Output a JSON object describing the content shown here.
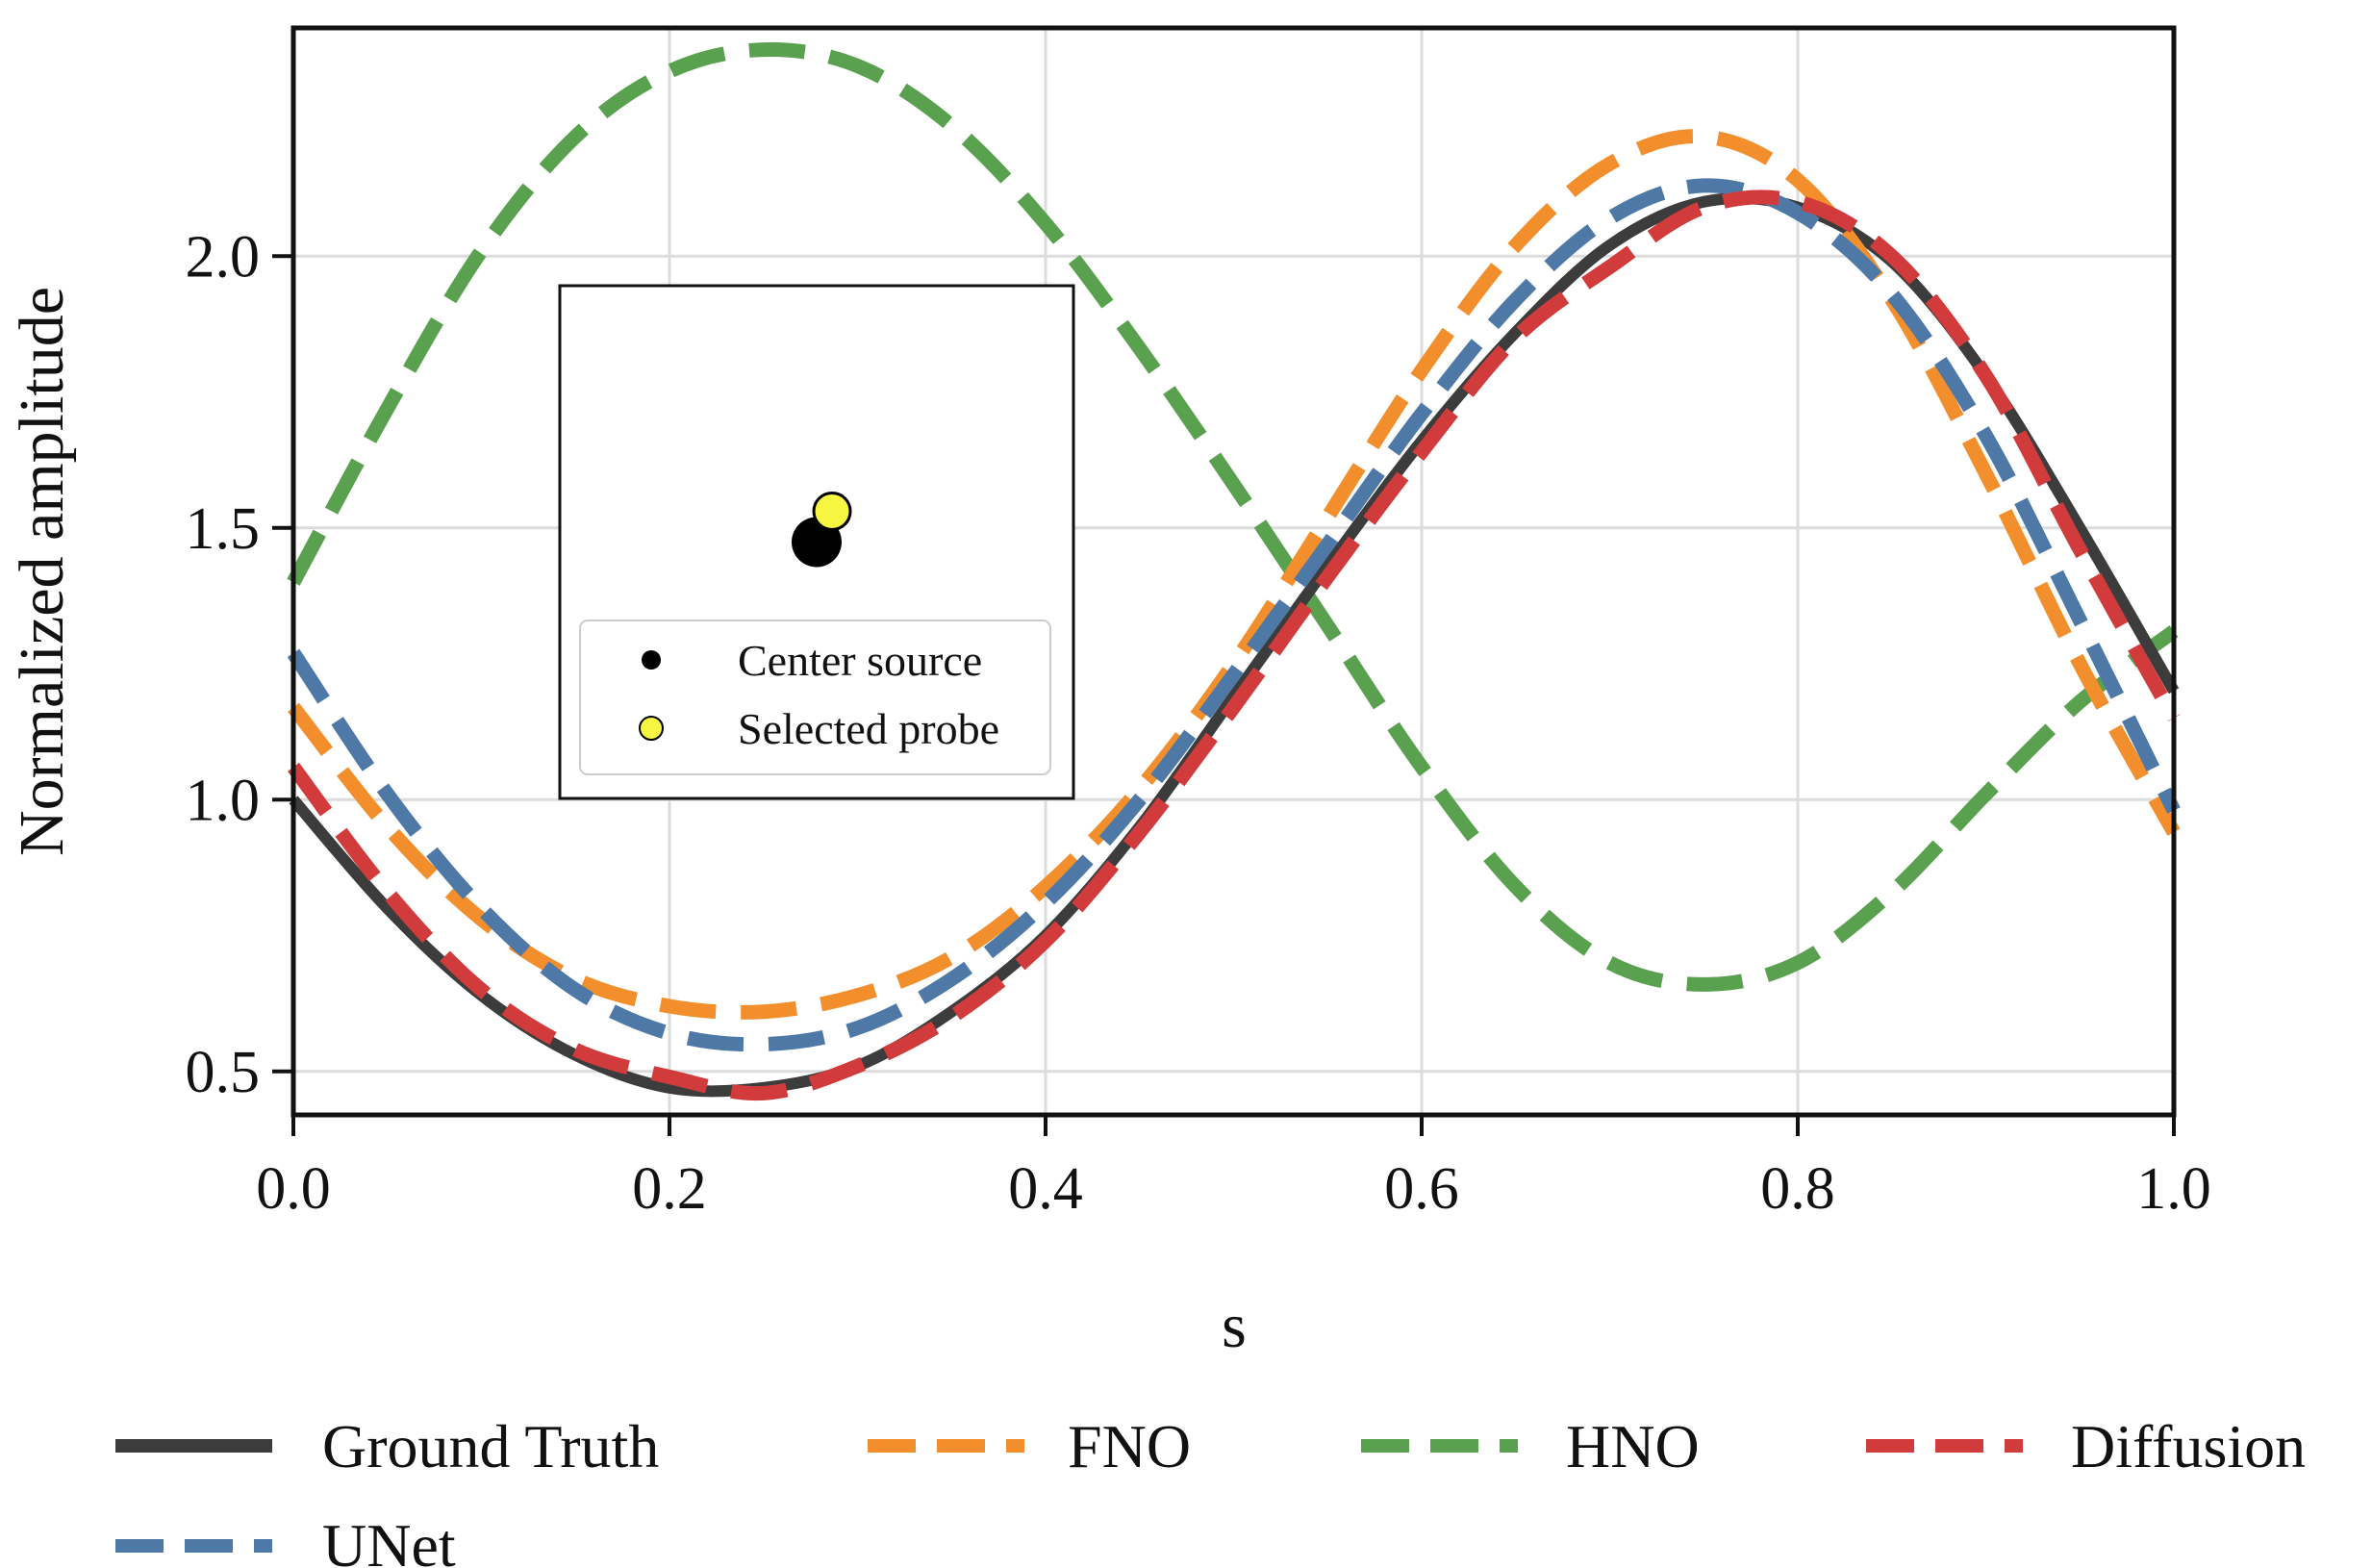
{
  "chart_data": {
    "type": "line",
    "xlabel": "s",
    "ylabel": "Normalized amplitude",
    "xlim": [
      0.0,
      1.0
    ],
    "ylim": [
      0.42,
      2.42
    ],
    "grid": true,
    "xticks": [
      0.0,
      0.2,
      0.4,
      0.6,
      0.8,
      1.0
    ],
    "xtick_labels": [
      "0.0",
      "0.2",
      "0.4",
      "0.6",
      "0.8",
      "1.0"
    ],
    "yticks": [
      0.5,
      1.0,
      1.5,
      2.0
    ],
    "ytick_labels": [
      "0.5",
      "1.0",
      "1.5",
      "2.0"
    ],
    "legend_position": "bottom",
    "series": [
      {
        "name": "Ground Truth",
        "style": "solid",
        "color": "#3c3c3c",
        "x": [
          0.0,
          0.05,
          0.1,
          0.15,
          0.2,
          0.25,
          0.3,
          0.35,
          0.4,
          0.45,
          0.5,
          0.55,
          0.6,
          0.65,
          0.7,
          0.75,
          0.8,
          0.85,
          0.9,
          0.95,
          1.0
        ],
        "y": [
          1.0,
          0.8,
          0.64,
          0.53,
          0.47,
          0.47,
          0.51,
          0.61,
          0.75,
          0.95,
          1.19,
          1.43,
          1.66,
          1.86,
          2.02,
          2.1,
          2.09,
          1.99,
          1.78,
          1.5,
          1.2
        ]
      },
      {
        "name": "FNO",
        "style": "dashed",
        "color": "#f28e2b",
        "x": [
          0.0,
          0.05,
          0.1,
          0.15,
          0.2,
          0.25,
          0.3,
          0.35,
          0.4,
          0.45,
          0.5,
          0.55,
          0.6,
          0.65,
          0.7,
          0.75,
          0.8,
          0.85,
          0.9,
          0.95,
          1.0
        ],
        "y": [
          1.17,
          0.95,
          0.78,
          0.67,
          0.62,
          0.61,
          0.64,
          0.71,
          0.84,
          1.02,
          1.25,
          1.52,
          1.79,
          2.02,
          2.17,
          2.22,
          2.14,
          1.92,
          1.6,
          1.25,
          0.94
        ]
      },
      {
        "name": "HNO",
        "style": "dashed",
        "color": "#59a14f",
        "x": [
          0.0,
          0.05,
          0.1,
          0.15,
          0.2,
          0.25,
          0.3,
          0.35,
          0.4,
          0.45,
          0.5,
          0.55,
          0.6,
          0.65,
          0.7,
          0.75,
          0.8,
          0.85,
          0.9,
          0.95,
          1.0
        ],
        "y": [
          1.4,
          1.72,
          2.01,
          2.22,
          2.34,
          2.38,
          2.35,
          2.24,
          2.06,
          1.83,
          1.58,
          1.32,
          1.06,
          0.84,
          0.7,
          0.66,
          0.7,
          0.83,
          1.01,
          1.18,
          1.31
        ]
      },
      {
        "name": "Diffusion",
        "style": "dashed",
        "color": "#d13b3b",
        "x": [
          0.0,
          0.05,
          0.1,
          0.15,
          0.2,
          0.25,
          0.3,
          0.35,
          0.4,
          0.45,
          0.5,
          0.55,
          0.6,
          0.65,
          0.7,
          0.75,
          0.8,
          0.85,
          0.9,
          0.95,
          1.0
        ],
        "y": [
          1.06,
          0.83,
          0.65,
          0.54,
          0.49,
          0.46,
          0.51,
          0.6,
          0.74,
          0.94,
          1.17,
          1.41,
          1.64,
          1.85,
          1.98,
          2.09,
          2.1,
          2.0,
          1.78,
          1.46,
          1.15
        ]
      },
      {
        "name": "UNet",
        "style": "dashed",
        "color": "#4e79a7",
        "x": [
          0.0,
          0.05,
          0.1,
          0.15,
          0.2,
          0.25,
          0.3,
          0.35,
          0.4,
          0.45,
          0.5,
          0.55,
          0.6,
          0.65,
          0.7,
          0.75,
          0.8,
          0.85,
          0.9,
          0.95,
          1.0
        ],
        "y": [
          1.27,
          1.01,
          0.8,
          0.65,
          0.57,
          0.55,
          0.58,
          0.67,
          0.81,
          1.0,
          1.23,
          1.47,
          1.71,
          1.92,
          2.07,
          2.13,
          2.08,
          1.93,
          1.67,
          1.33,
          0.98
        ]
      }
    ],
    "inset": {
      "legend": [
        {
          "label": "Center source",
          "color": "#000000"
        },
        {
          "label": "Selected probe",
          "color": "#f5f542"
        }
      ],
      "points": [
        {
          "label": "Center source",
          "x": 0.5,
          "y": 0.5
        },
        {
          "label": "Selected probe",
          "x": 0.53,
          "y": 0.56
        }
      ]
    }
  }
}
